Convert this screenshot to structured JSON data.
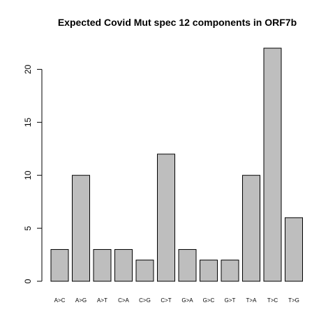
{
  "chart_data": {
    "type": "bar",
    "title": "Expected Covid Mut spec 12 components in ORF7b",
    "xlabel": "",
    "ylabel": "",
    "categories": [
      "A>C",
      "A>G",
      "A>T",
      "C>A",
      "C>G",
      "C>T",
      "G>A",
      "G>C",
      "G>T",
      "T>A",
      "T>C",
      "T>G"
    ],
    "values": [
      3,
      10,
      3,
      3,
      2,
      12,
      3,
      2,
      2,
      10,
      22,
      6
    ],
    "ylim": [
      0,
      22.66
    ],
    "yticks": [
      0,
      5,
      10,
      15,
      20
    ],
    "grid": false,
    "legend": "none",
    "colors": {
      "bar_fill": "#bebebe",
      "bar_stroke": "#000000",
      "axis": "#000000",
      "background": "#ffffff"
    }
  }
}
